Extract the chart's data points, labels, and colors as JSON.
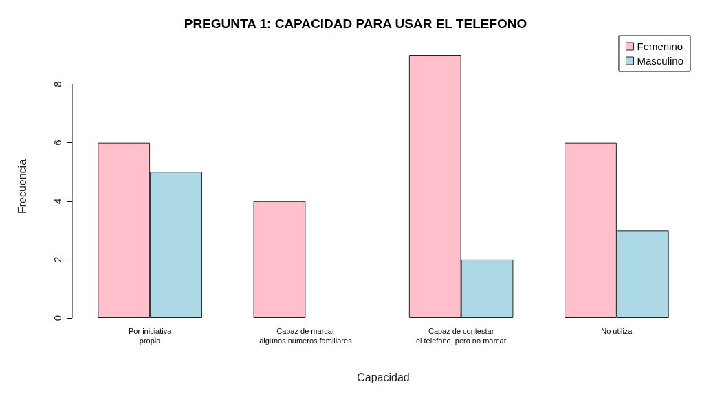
{
  "chart_data": {
    "type": "bar",
    "title": "PREGUNTA 1: CAPACIDAD PARA USAR EL TELEFONO",
    "xlabel": "Capacidad",
    "ylabel": "Frecuencia",
    "categories": [
      "Por iniciativa\npropia",
      "Capaz de marcar\nalgunos numeros familiares",
      "Capaz de contestar\nel telefono, pero no marcar",
      "No utiliza"
    ],
    "series": [
      {
        "name": "Femenino",
        "color": "#ffc0cb",
        "values": [
          6,
          4,
          9,
          6
        ]
      },
      {
        "name": "Masculino",
        "color": "#add8e6",
        "values": [
          5,
          0,
          2,
          3
        ]
      }
    ],
    "ylim": [
      0,
      9
    ],
    "yticks": [
      0,
      2,
      4,
      6,
      8
    ],
    "grid": false,
    "legend": "top right"
  }
}
